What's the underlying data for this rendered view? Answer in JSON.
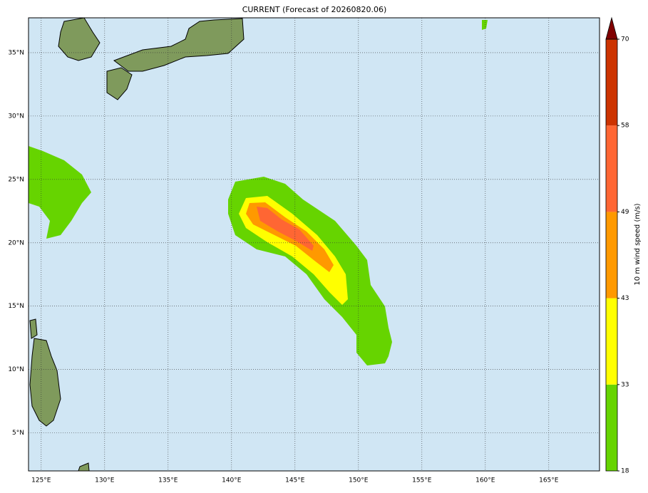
{
  "title": "CURRENT (Forecast of 20260820.06)",
  "map": {
    "lonlim": [
      124,
      169
    ],
    "latlim": [
      2,
      37.75
    ],
    "ocean_color": "#d0e6f4",
    "land_color": "#7f9a5c",
    "lonticks": [
      {
        "value": 125,
        "label": "125°E"
      },
      {
        "value": 130,
        "label": "130°E"
      },
      {
        "value": 135,
        "label": "135°E"
      },
      {
        "value": 140,
        "label": "140°E"
      },
      {
        "value": 145,
        "label": "145°E"
      },
      {
        "value": 150,
        "label": "150°E"
      },
      {
        "value": 155,
        "label": "155°E"
      },
      {
        "value": 160,
        "label": "160°E"
      },
      {
        "value": 165,
        "label": "165°E"
      }
    ],
    "latticks": [
      {
        "value": 5,
        "label": "5°N"
      },
      {
        "value": 10,
        "label": "10°N"
      },
      {
        "value": 15,
        "label": "15°N"
      },
      {
        "value": 20,
        "label": "20°N"
      },
      {
        "value": 25,
        "label": "25°N"
      },
      {
        "value": 30,
        "label": "30°N"
      },
      {
        "value": 35,
        "label": "35°N"
      }
    ],
    "grid": true
  },
  "colorbar": {
    "label": "10 m wind speed (m/s)",
    "levels": [
      18,
      33,
      43,
      49,
      58,
      70
    ],
    "colors": [
      "#66d400",
      "#ffff00",
      "#ff9900",
      "#ff6633",
      "#cc3300"
    ],
    "extend_color": "#800000"
  }
}
